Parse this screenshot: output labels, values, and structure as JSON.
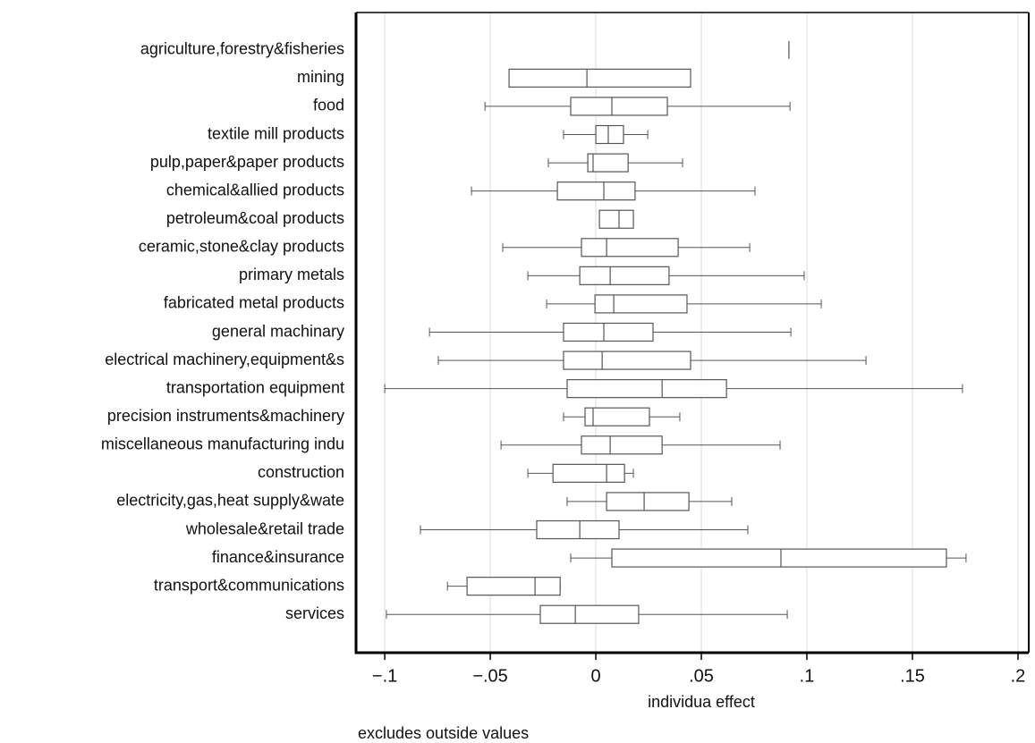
{
  "chart_data": {
    "type": "boxplot",
    "orientation": "horizontal",
    "xlabel": "individua effect",
    "note": "excludes outside values",
    "categories": [
      "agriculture,forestry&fisheries",
      "mining",
      "food",
      "textile mill products",
      "pulp,paper&paper products",
      "chemical&allied products",
      "petroleum&coal products",
      "ceramic,stone&clay products",
      "primary metals",
      "fabricated metal products",
      "general machinary",
      "electrical machinery,equipment&s",
      "transportation equipment",
      "precision instruments&machinery",
      "miscellaneous manufacturing indu",
      "construction",
      "electricity,gas,heat supply&wate",
      "wholesale&retail trade",
      "finance&insurance",
      "transport&communications",
      "services"
    ],
    "min": [
      0.0915,
      -0.0411,
      -0.0525,
      -0.0153,
      -0.0225,
      -0.0589,
      0.0017,
      -0.0441,
      -0.0322,
      -0.0233,
      -0.0788,
      -0.0746,
      -0.1,
      -0.0153,
      -0.0449,
      -0.0322,
      -0.0136,
      -0.0831,
      -0.0119,
      -0.0703,
      -0.0992
    ],
    "q1": [
      0.0915,
      -0.0411,
      -0.0119,
      0.0,
      -0.0038,
      -0.0182,
      0.0017,
      -0.0068,
      -0.0076,
      -0.0004,
      -0.0153,
      -0.0153,
      -0.0136,
      -0.0051,
      -0.0068,
      -0.0203,
      0.0051,
      -0.028,
      0.0076,
      -0.061,
      -0.0263
    ],
    "median": [
      0.0915,
      -0.0042,
      0.0076,
      0.0059,
      -0.0013,
      0.0038,
      0.011,
      0.0051,
      0.0068,
      0.0085,
      0.0038,
      0.003,
      0.0314,
      -0.0013,
      0.0068,
      0.0051,
      0.0229,
      -0.0076,
      0.0877,
      -0.0288,
      -0.0097
    ],
    "q3": [
      0.0915,
      0.0449,
      0.0339,
      0.0131,
      0.0153,
      0.0186,
      0.0178,
      0.039,
      0.0347,
      0.0432,
      0.0271,
      0.0449,
      0.0619,
      0.0254,
      0.0314,
      0.0136,
      0.0441,
      0.011,
      0.1661,
      -0.0169,
      0.0203
    ],
    "max": [
      0.0915,
      0.0449,
      0.092,
      0.0246,
      0.0411,
      0.0754,
      0.0178,
      0.0729,
      0.0987,
      0.1068,
      0.0924,
      0.128,
      0.1737,
      0.0398,
      0.0873,
      0.0178,
      0.0644,
      0.072,
      0.1754,
      -0.0169,
      0.0907
    ],
    "color": "#555555",
    "xlim": [
      -0.1136,
      0.2051
    ],
    "xticks": [
      {
        "value": -0.1,
        "label": "−.1"
      },
      {
        "value": -0.05,
        "label": "−.05"
      },
      0,
      {
        "value": 0.05,
        "label": ".05"
      },
      {
        "value": 0.1,
        "label": ".1"
      },
      {
        "value": 0.15,
        "label": ".15"
      },
      {
        "value": 0.2,
        "label": ".2"
      }
    ],
    "grid": true
  }
}
